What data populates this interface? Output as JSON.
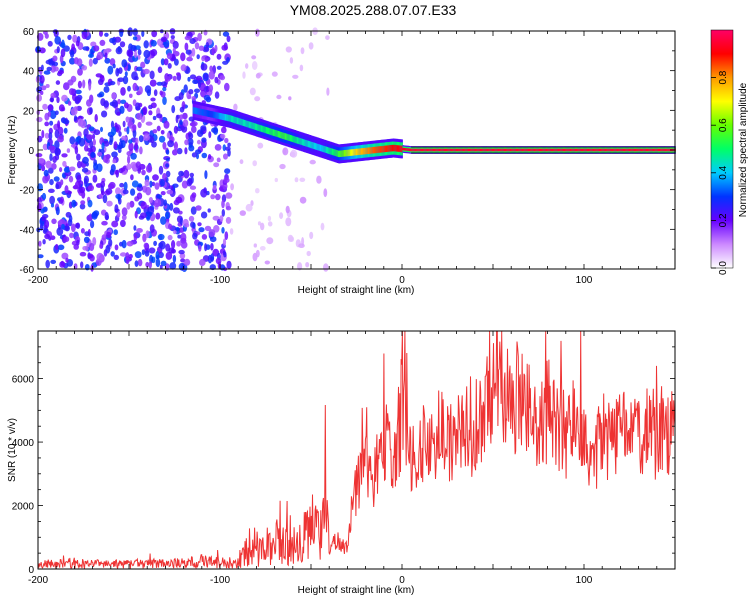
{
  "title": "YM08.2025.288.07.07.E33",
  "chart_data": [
    {
      "type": "heatmap",
      "xlabel": "Height of straight line (km)",
      "ylabel": "Frequency (Hz)",
      "xlim": [
        -200,
        150
      ],
      "ylim": [
        -60,
        60
      ],
      "x_ticks": [
        "-200",
        "-100",
        "0",
        "100"
      ],
      "y_ticks": [
        "-60",
        "-40",
        "-20",
        "0",
        "20",
        "40",
        "60"
      ],
      "colorbar": {
        "label": "Normalized spectral amplitude",
        "range": [
          0.0,
          1.0
        ],
        "ticks": [
          "0.0",
          "0.2",
          "0.4",
          "0.6",
          "0.8"
        ],
        "colors": [
          "#ffffff",
          "#cc88ff",
          "#6600ff",
          "#0033ff",
          "#00ccff",
          "#00ff66",
          "#66ff00",
          "#ffff00",
          "#ff9900",
          "#ff0000",
          "#ff0066"
        ]
      },
      "ridge": {
        "x": [
          -115,
          -105,
          -95,
          -85,
          -75,
          -65,
          -55,
          -45,
          -35,
          -25,
          -15,
          -5,
          5,
          15,
          50,
          100,
          150
        ],
        "y": [
          20,
          18,
          16,
          13,
          10,
          7,
          4,
          1,
          -2,
          -1,
          0,
          1,
          0,
          0,
          0,
          0,
          0
        ],
        "amplitude": [
          0.35,
          0.3,
          0.45,
          0.45,
          0.5,
          0.55,
          0.45,
          0.4,
          0.55,
          0.75,
          0.85,
          0.9,
          0.95,
          0.95,
          0.95,
          0.95,
          0.95
        ]
      }
    },
    {
      "type": "line",
      "xlabel": "Height of straight line (km)",
      "ylabel": "SNR (10 * v/v)",
      "xlim": [
        -200,
        150
      ],
      "ylim": [
        0,
        7500
      ],
      "x_ticks": [
        "-200",
        "-100",
        "0",
        "100"
      ],
      "y_ticks": [
        "0",
        "2000",
        "4000",
        "6000"
      ],
      "series": [
        {
          "color": "#ee3333",
          "x": [
            -200,
            -180,
            -160,
            -140,
            -120,
            -110,
            -100,
            -90,
            -82,
            -78,
            -75,
            -70,
            -65,
            -60,
            -55,
            -50,
            -45,
            -42,
            -40,
            -35,
            -30,
            -28,
            -25,
            -20,
            -15,
            -10,
            -5,
            0,
            5,
            10,
            15,
            20,
            25,
            30,
            35,
            40,
            45,
            50,
            55,
            60,
            65,
            70,
            75,
            80,
            85,
            90,
            95,
            100,
            105,
            110,
            115,
            120,
            125,
            130,
            135,
            140,
            145,
            150
          ],
          "y": [
            150,
            160,
            150,
            170,
            180,
            250,
            200,
            250,
            800,
            500,
            700,
            900,
            700,
            1000,
            800,
            1400,
            900,
            2300,
            700,
            900,
            600,
            1800,
            2600,
            3100,
            2900,
            4100,
            3400,
            4900,
            3200,
            3900,
            3500,
            4400,
            3900,
            4400,
            4000,
            4600,
            4800,
            5400,
            6000,
            4800,
            5600,
            4900,
            4200,
            5000,
            4500,
            4100,
            4700,
            4300,
            3600,
            4200,
            3900,
            4500,
            4000,
            4100,
            4300,
            4200,
            4600,
            4100
          ]
        }
      ]
    }
  ]
}
